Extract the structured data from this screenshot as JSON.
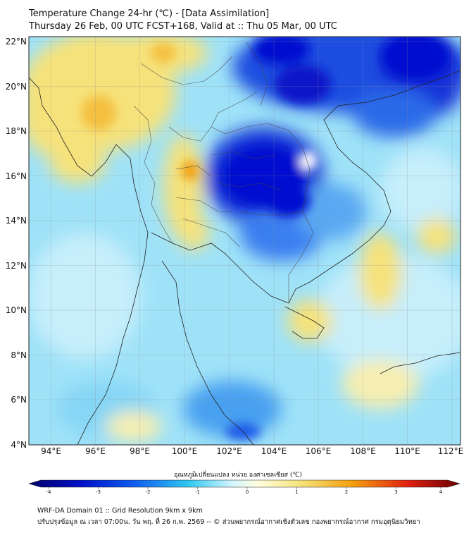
{
  "title_line1": "Temperature Change 24-hr (℃) - [Data Assimilation]",
  "title_line2": "Thursday 26 Feb, 00 UTC FCST+168, Valid at :: Thu 05 Mar, 00 UTC",
  "lat_labels": [
    "22°N",
    "20°N",
    "18°N",
    "16°N",
    "14°N",
    "12°N",
    "10°N",
    "8°N",
    "6°N",
    "4°N"
  ],
  "lon_labels": [
    "94°E",
    "96°E",
    "98°E",
    "100°E",
    "102°E",
    "104°E",
    "106°E",
    "108°E",
    "110°E",
    "112°E"
  ],
  "colorbar": {
    "title": "อุณหภูมิเปลี่ยนแปลง หน่วย องศาเซลเซียส (℃)",
    "ticks": [
      "-4",
      "-3",
      "-2",
      "-1",
      "0",
      "1",
      "2",
      "3",
      "4"
    ],
    "min": -4,
    "max": 4
  },
  "footer_line1": "WRF-DA Domain 01 :: Grid Resolution 9km x 9km",
  "footer_line2": "ปรับปรุงข้อมูล ณ เวลา 07:00น. วัน พฤ. ที่ 26 ก.พ. 2569 -- © ส่วนพยากรณ์อากาศเชิงตัวเลข กองพยากรณ์อากาศ กรมอุตุนิยมวิทยา",
  "colors": {
    "strong_cooling": "#0010d0",
    "cooling": "#3a8af0",
    "light_cooling": "#aee6fb",
    "neutral": "#eefaff",
    "warming": "#f6e27a",
    "strong_warming": "#f4a010"
  }
}
